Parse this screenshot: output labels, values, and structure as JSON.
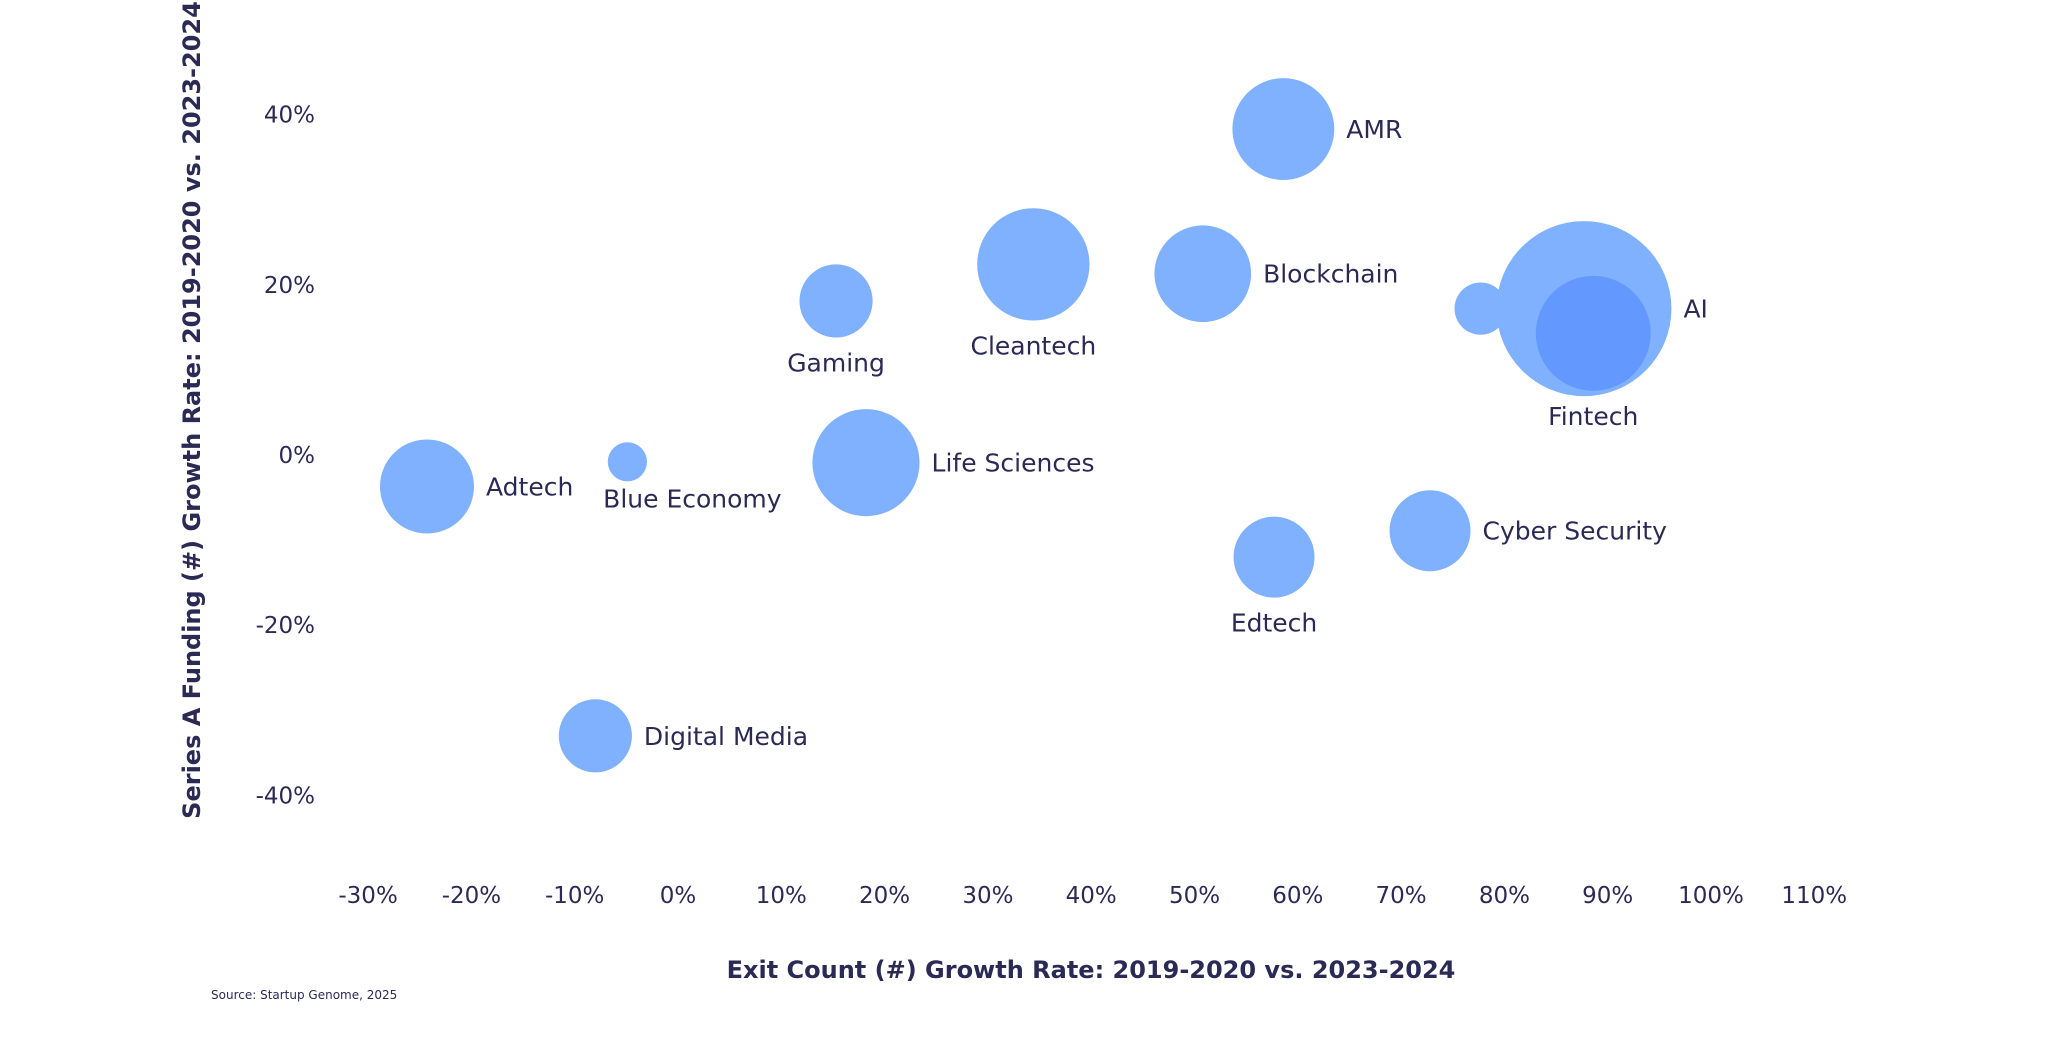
{
  "chart_data": {
    "type": "scatter",
    "subtype": "bubble",
    "xlabel": "Exit Count (#) Growth Rate: 2019-2020 vs. 2023-2024",
    "ylabel": "Series A Funding (#) Growth Rate: 2019-2020 vs. 2023-2024",
    "source": "Source: Startup Genome, 2025",
    "xlim": [
      -30,
      110
    ],
    "ylim": [
      -40,
      40
    ],
    "x_ticks": [
      -30,
      -20,
      -10,
      0,
      10,
      20,
      30,
      40,
      50,
      60,
      70,
      80,
      90,
      100,
      110
    ],
    "x_tick_labels": [
      "-30%",
      "-20%",
      "-10%",
      "0%",
      "10%",
      "20%",
      "30%",
      "40%",
      "50%",
      "60%",
      "70%",
      "80%",
      "90%",
      "100%",
      "110%"
    ],
    "y_ticks": [
      40,
      20,
      0,
      -20,
      -40
    ],
    "y_tick_labels": [
      "40%",
      "20%",
      "0%",
      "-20%",
      "-40%"
    ],
    "grid": false,
    "colors": {
      "bubble": "#80b1ff",
      "highlight": "#6399ff",
      "text": "#2b2a55"
    },
    "points": [
      {
        "label": "AMR",
        "x": 58.6,
        "y": 38.3,
        "size": 39,
        "label_pos": "right"
      },
      {
        "label": "Cleantech",
        "x": 34.4,
        "y": 22.4,
        "size": 43,
        "label_pos": "below"
      },
      {
        "label": "Blockchain",
        "x": 50.8,
        "y": 21.3,
        "size": 37,
        "label_pos": "right"
      },
      {
        "label": "Gaming",
        "x": 15.3,
        "y": 18.1,
        "size": 28,
        "label_pos": "below"
      },
      {
        "label": null,
        "x": 77.7,
        "y": 17.2,
        "size": 20,
        "label_pos": "none"
      },
      {
        "label": "AI",
        "x": 87.7,
        "y": 17.2,
        "size": 67,
        "label_pos": "right"
      },
      {
        "label": "Fintech",
        "x": 88.6,
        "y": 14.3,
        "size": 44,
        "label_pos": "below",
        "highlight": true
      },
      {
        "label": "Adtech",
        "x": -24.3,
        "y": -3.7,
        "size": 36,
        "label_pos": "right"
      },
      {
        "label": "Blue Economy",
        "x": -4.9,
        "y": -0.8,
        "size": 15,
        "label_pos": "below-right"
      },
      {
        "label": "Life Sciences",
        "x": 18.2,
        "y": -0.9,
        "size": 41,
        "label_pos": "right"
      },
      {
        "label": "Edtech",
        "x": 57.7,
        "y": -12.0,
        "size": 31,
        "label_pos": "below"
      },
      {
        "label": "Cyber Security",
        "x": 72.8,
        "y": -8.9,
        "size": 31,
        "label_pos": "right"
      },
      {
        "label": "Digital Media",
        "x": -8.0,
        "y": -33.0,
        "size": 28,
        "label_pos": "right"
      }
    ]
  }
}
